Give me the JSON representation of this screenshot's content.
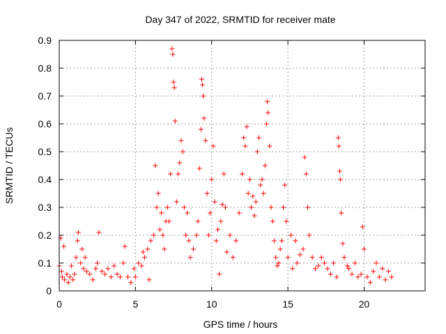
{
  "chart_data": {
    "type": "scatter",
    "title": "Day 347 of 2022, SRMTID for receiver mate",
    "xlabel": "GPS time / hours",
    "ylabel": "SRMTID / TECUs",
    "xlim": [
      0,
      24
    ],
    "ylim": [
      0,
      0.9
    ],
    "xticks": [
      0,
      5,
      10,
      15,
      20
    ],
    "yticks": [
      0,
      0.1,
      0.2,
      0.3,
      0.4,
      0.5,
      0.6,
      0.7,
      0.8,
      0.9
    ],
    "ytick_labels": [
      "0",
      "0.1",
      "0.2",
      "0.3",
      "0.4",
      "0.5",
      "0.6",
      "0.7",
      "0.8",
      "0.9"
    ],
    "grid": true,
    "marker": "+",
    "color": "#ff0000",
    "series": [
      {
        "name": "SRMTID",
        "points": [
          [
            0.0,
            0.09
          ],
          [
            0.1,
            0.19
          ],
          [
            0.15,
            0.07
          ],
          [
            0.2,
            0.05
          ],
          [
            0.3,
            0.16
          ],
          [
            0.35,
            0.04
          ],
          [
            0.5,
            0.06
          ],
          [
            0.6,
            0.03
          ],
          [
            0.7,
            0.05
          ],
          [
            0.8,
            0.09
          ],
          [
            0.9,
            0.04
          ],
          [
            1.0,
            0.06
          ],
          [
            1.1,
            0.12
          ],
          [
            1.2,
            0.18
          ],
          [
            1.25,
            0.21
          ],
          [
            1.4,
            0.1
          ],
          [
            1.5,
            0.15
          ],
          [
            1.6,
            0.08
          ],
          [
            1.7,
            0.12
          ],
          [
            1.8,
            0.07
          ],
          [
            2.0,
            0.06
          ],
          [
            2.2,
            0.04
          ],
          [
            2.4,
            0.08
          ],
          [
            2.5,
            0.1
          ],
          [
            2.6,
            0.21
          ],
          [
            2.8,
            0.07
          ],
          [
            3.0,
            0.06
          ],
          [
            3.2,
            0.08
          ],
          [
            3.4,
            0.05
          ],
          [
            3.6,
            0.09
          ],
          [
            3.8,
            0.06
          ],
          [
            4.0,
            0.05
          ],
          [
            4.2,
            0.1
          ],
          [
            4.3,
            0.16
          ],
          [
            4.5,
            0.05
          ],
          [
            4.7,
            0.03
          ],
          [
            4.9,
            0.08
          ],
          [
            5.0,
            0.05
          ],
          [
            5.2,
            0.1
          ],
          [
            5.4,
            0.09
          ],
          [
            5.5,
            0.14
          ],
          [
            5.6,
            0.12
          ],
          [
            5.8,
            0.15
          ],
          [
            5.9,
            0.04
          ],
          [
            6.0,
            0.18
          ],
          [
            6.2,
            0.2
          ],
          [
            6.3,
            0.45
          ],
          [
            6.4,
            0.3
          ],
          [
            6.5,
            0.35
          ],
          [
            6.6,
            0.22
          ],
          [
            6.7,
            0.28
          ],
          [
            6.8,
            0.2
          ],
          [
            6.9,
            0.15
          ],
          [
            7.0,
            0.25
          ],
          [
            7.1,
            0.3
          ],
          [
            7.2,
            0.25
          ],
          [
            7.3,
            0.42
          ],
          [
            7.4,
            0.87
          ],
          [
            7.45,
            0.85
          ],
          [
            7.5,
            0.75
          ],
          [
            7.55,
            0.73
          ],
          [
            7.6,
            0.61
          ],
          [
            7.7,
            0.32
          ],
          [
            7.8,
            0.42
          ],
          [
            7.9,
            0.46
          ],
          [
            8.0,
            0.54
          ],
          [
            8.1,
            0.5
          ],
          [
            8.2,
            0.3
          ],
          [
            8.3,
            0.2
          ],
          [
            8.4,
            0.28
          ],
          [
            8.5,
            0.18
          ],
          [
            8.6,
            0.12
          ],
          [
            8.8,
            0.15
          ],
          [
            9.0,
            0.2
          ],
          [
            9.1,
            0.25
          ],
          [
            9.2,
            0.44
          ],
          [
            9.3,
            0.58
          ],
          [
            9.35,
            0.76
          ],
          [
            9.4,
            0.74
          ],
          [
            9.45,
            0.7
          ],
          [
            9.5,
            0.62
          ],
          [
            9.6,
            0.54
          ],
          [
            9.7,
            0.35
          ],
          [
            9.8,
            0.2
          ],
          [
            9.9,
            0.28
          ],
          [
            10.0,
            0.4
          ],
          [
            10.1,
            0.52
          ],
          [
            10.2,
            0.32
          ],
          [
            10.3,
            0.18
          ],
          [
            10.4,
            0.22
          ],
          [
            10.5,
            0.06
          ],
          [
            10.6,
            0.25
          ],
          [
            10.7,
            0.31
          ],
          [
            10.8,
            0.42
          ],
          [
            10.9,
            0.3
          ],
          [
            11.0,
            0.14
          ],
          [
            11.2,
            0.2
          ],
          [
            11.4,
            0.12
          ],
          [
            11.6,
            0.18
          ],
          [
            11.8,
            0.28
          ],
          [
            12.0,
            0.42
          ],
          [
            12.1,
            0.55
          ],
          [
            12.2,
            0.52
          ],
          [
            12.3,
            0.59
          ],
          [
            12.4,
            0.35
          ],
          [
            12.5,
            0.4
          ],
          [
            12.6,
            0.3
          ],
          [
            12.7,
            0.34
          ],
          [
            12.8,
            0.27
          ],
          [
            12.9,
            0.32
          ],
          [
            13.0,
            0.5
          ],
          [
            13.1,
            0.55
          ],
          [
            13.2,
            0.38
          ],
          [
            13.3,
            0.4
          ],
          [
            13.4,
            0.35
          ],
          [
            13.5,
            0.45
          ],
          [
            13.6,
            0.6
          ],
          [
            13.65,
            0.68
          ],
          [
            13.7,
            0.64
          ],
          [
            13.8,
            0.52
          ],
          [
            13.9,
            0.3
          ],
          [
            14.0,
            0.25
          ],
          [
            14.1,
            0.18
          ],
          [
            14.2,
            0.12
          ],
          [
            14.3,
            0.09
          ],
          [
            14.4,
            0.1
          ],
          [
            14.5,
            0.15
          ],
          [
            14.6,
            0.18
          ],
          [
            14.7,
            0.3
          ],
          [
            14.8,
            0.38
          ],
          [
            14.9,
            0.25
          ],
          [
            15.0,
            0.12
          ],
          [
            15.2,
            0.2
          ],
          [
            15.3,
            0.08
          ],
          [
            15.5,
            0.18
          ],
          [
            15.6,
            0.1
          ],
          [
            15.8,
            0.13
          ],
          [
            16.0,
            0.15
          ],
          [
            16.1,
            0.48
          ],
          [
            16.2,
            0.42
          ],
          [
            16.3,
            0.3
          ],
          [
            16.4,
            0.2
          ],
          [
            16.6,
            0.12
          ],
          [
            16.8,
            0.08
          ],
          [
            17.0,
            0.09
          ],
          [
            17.2,
            0.12
          ],
          [
            17.4,
            0.1
          ],
          [
            17.6,
            0.08
          ],
          [
            17.8,
            0.06
          ],
          [
            18.0,
            0.1
          ],
          [
            18.2,
            0.05
          ],
          [
            18.3,
            0.55
          ],
          [
            18.35,
            0.52
          ],
          [
            18.4,
            0.43
          ],
          [
            18.45,
            0.4
          ],
          [
            18.5,
            0.28
          ],
          [
            18.6,
            0.17
          ],
          [
            18.7,
            0.12
          ],
          [
            18.9,
            0.09
          ],
          [
            19.0,
            0.08
          ],
          [
            19.2,
            0.06
          ],
          [
            19.4,
            0.1
          ],
          [
            19.6,
            0.05
          ],
          [
            19.8,
            0.06
          ],
          [
            19.9,
            0.23
          ],
          [
            20.0,
            0.15
          ],
          [
            20.2,
            0.05
          ],
          [
            20.4,
            0.03
          ],
          [
            20.6,
            0.07
          ],
          [
            20.8,
            0.1
          ],
          [
            21.0,
            0.05
          ],
          [
            21.2,
            0.08
          ],
          [
            21.4,
            0.04
          ],
          [
            21.6,
            0.07
          ],
          [
            21.8,
            0.05
          ]
        ]
      }
    ]
  }
}
